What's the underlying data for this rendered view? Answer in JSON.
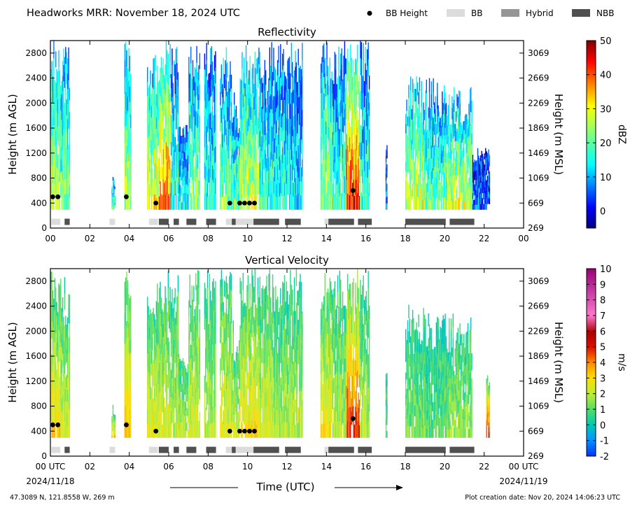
{
  "header": {
    "title": "Headworks MRR:  November 18, 2024 UTC",
    "legend": [
      {
        "label": "BB Height",
        "kind": "dot",
        "color": "#000000"
      },
      {
        "label": "BB",
        "kind": "box",
        "color": "#dcdcdc"
      },
      {
        "label": "Hybrid",
        "kind": "box",
        "color": "#969696"
      },
      {
        "label": "NBB",
        "kind": "box",
        "color": "#505050"
      }
    ]
  },
  "footer": {
    "location": "47.3089 N, 121.8558 W, 269 m",
    "creation": "Plot creation date: Nov 20, 2024 14:06:23 UTC"
  },
  "colors": {
    "bb": "#dcdcdc",
    "hybrid": "#969696",
    "nbb": "#505050",
    "dot": "#000000"
  },
  "chart_data": [
    {
      "type": "heatmap",
      "title": "Reflectivity",
      "ylabel_left": "Height (m AGL)",
      "ylabel_right": "Height (m MSL)",
      "x_ticks": [
        "00",
        "02",
        "04",
        "06",
        "08",
        "10",
        "12",
        "14",
        "16",
        "18",
        "20",
        "22",
        "00"
      ],
      "x_range_hours": [
        0,
        24
      ],
      "y_range_m_agl": [
        0,
        3000
      ],
      "y_ticks_left": [
        "0",
        "400",
        "800",
        "1200",
        "1600",
        "2000",
        "2400",
        "2800"
      ],
      "y_ticks_right": [
        "269",
        "669",
        "1069",
        "1469",
        "1869",
        "2269",
        "2669",
        "3069"
      ],
      "colorbar": {
        "label": "dBZ",
        "range": [
          -5,
          50
        ],
        "ticks": [
          "0",
          "10",
          "20",
          "30",
          "40",
          "50"
        ],
        "colormap": "jet"
      },
      "echo_periods": [
        {
          "start": 0.0,
          "end": 0.5,
          "top": 3000,
          "intensity": 24
        },
        {
          "start": 0.5,
          "end": 1.0,
          "top": 2900,
          "intensity": 20
        },
        {
          "start": 3.1,
          "end": 3.3,
          "top": 850,
          "intensity": 18
        },
        {
          "start": 3.75,
          "end": 4.1,
          "top": 3000,
          "intensity": 22
        },
        {
          "start": 4.9,
          "end": 5.5,
          "top": 2800,
          "intensity": 28
        },
        {
          "start": 5.5,
          "end": 6.1,
          "top": 3000,
          "intensity": 34
        },
        {
          "start": 6.1,
          "end": 6.5,
          "top": 3000,
          "intensity": 15
        },
        {
          "start": 6.5,
          "end": 7.0,
          "top": 1650,
          "intensity": 12
        },
        {
          "start": 7.0,
          "end": 7.6,
          "top": 3000,
          "intensity": 20
        },
        {
          "start": 7.8,
          "end": 8.4,
          "top": 3000,
          "intensity": 14
        },
        {
          "start": 8.6,
          "end": 9.2,
          "top": 3000,
          "intensity": 18
        },
        {
          "start": 9.2,
          "end": 9.6,
          "top": 2200,
          "intensity": 17
        },
        {
          "start": 9.6,
          "end": 10.6,
          "top": 3000,
          "intensity": 24
        },
        {
          "start": 10.6,
          "end": 11.3,
          "top": 3000,
          "intensity": 15
        },
        {
          "start": 11.3,
          "end": 12.1,
          "top": 3000,
          "intensity": 14
        },
        {
          "start": 12.1,
          "end": 12.8,
          "top": 3000,
          "intensity": 12
        },
        {
          "start": 13.7,
          "end": 14.3,
          "top": 3000,
          "intensity": 22
        },
        {
          "start": 14.3,
          "end": 15.0,
          "top": 3000,
          "intensity": 16
        },
        {
          "start": 15.0,
          "end": 15.7,
          "top": 3000,
          "intensity": 38
        },
        {
          "start": 15.7,
          "end": 16.2,
          "top": 3000,
          "intensity": 15
        },
        {
          "start": 17.0,
          "end": 17.1,
          "top": 1350,
          "intensity": 5
        },
        {
          "start": 18.0,
          "end": 19.0,
          "top": 2450,
          "intensity": 25
        },
        {
          "start": 19.0,
          "end": 20.1,
          "top": 2400,
          "intensity": 18
        },
        {
          "start": 20.1,
          "end": 21.4,
          "top": 2300,
          "intensity": 24
        },
        {
          "start": 21.4,
          "end": 22.3,
          "top": 1300,
          "intensity": 5
        }
      ],
      "bb_height_points": [
        {
          "t": 0.12,
          "h": 500
        },
        {
          "t": 0.38,
          "h": 500
        },
        {
          "t": 3.85,
          "h": 500
        },
        {
          "t": 5.35,
          "h": 400
        },
        {
          "t": 9.1,
          "h": 400
        },
        {
          "t": 9.6,
          "h": 400
        },
        {
          "t": 9.85,
          "h": 400
        },
        {
          "t": 10.1,
          "h": 400
        },
        {
          "t": 10.35,
          "h": 400
        },
        {
          "t": 15.35,
          "h": 600
        }
      ],
      "bb_type_segments": [
        {
          "start": 0.05,
          "end": 0.5,
          "type": "bb"
        },
        {
          "start": 0.72,
          "end": 0.98,
          "type": "nbb"
        },
        {
          "start": 3.0,
          "end": 3.28,
          "type": "bb"
        },
        {
          "start": 5.0,
          "end": 5.45,
          "type": "bb"
        },
        {
          "start": 5.5,
          "end": 6.0,
          "type": "nbb"
        },
        {
          "start": 6.25,
          "end": 6.52,
          "type": "nbb"
        },
        {
          "start": 6.9,
          "end": 7.4,
          "type": "nbb"
        },
        {
          "start": 7.9,
          "end": 8.4,
          "type": "nbb"
        },
        {
          "start": 8.9,
          "end": 9.2,
          "type": "bb"
        },
        {
          "start": 9.2,
          "end": 9.4,
          "type": "nbb"
        },
        {
          "start": 9.4,
          "end": 10.3,
          "type": "bb"
        },
        {
          "start": 10.3,
          "end": 11.6,
          "type": "nbb"
        },
        {
          "start": 11.9,
          "end": 12.7,
          "type": "nbb"
        },
        {
          "start": 13.9,
          "end": 14.1,
          "type": "bb"
        },
        {
          "start": 14.1,
          "end": 15.4,
          "type": "nbb"
        },
        {
          "start": 15.6,
          "end": 16.3,
          "type": "nbb"
        },
        {
          "start": 18.0,
          "end": 20.05,
          "type": "nbb"
        },
        {
          "start": 20.25,
          "end": 21.5,
          "type": "nbb"
        }
      ]
    },
    {
      "type": "heatmap",
      "title": "Vertical Velocity",
      "ylabel_left": "Height (m AGL)",
      "ylabel_right": "Height (m MSL)",
      "xlabel": "Time (UTC)",
      "x_ticks": [
        "00 UTC",
        "02",
        "04",
        "06",
        "08",
        "10",
        "12",
        "14",
        "16",
        "18",
        "20",
        "22",
        "00 UTC"
      ],
      "x_dates": [
        "2024/11/18",
        "2024/11/19"
      ],
      "x_range_hours": [
        0,
        24
      ],
      "y_range_m_agl": [
        0,
        3000
      ],
      "y_ticks_left": [
        "0",
        "400",
        "800",
        "1200",
        "1600",
        "2000",
        "2400",
        "2800"
      ],
      "y_ticks_right": [
        "269",
        "669",
        "1069",
        "1469",
        "1869",
        "2269",
        "2669",
        "3069"
      ],
      "colorbar": {
        "label": "m/s",
        "range": [
          -2,
          10
        ],
        "ticks": [
          "-2",
          "-1",
          "0",
          "1",
          "2",
          "3",
          "4",
          "5",
          "6",
          "7",
          "8",
          "9",
          "10"
        ],
        "colormap": "velocity"
      },
      "echo_periods": [
        {
          "start": 0.0,
          "end": 0.5,
          "top": 3000,
          "intensity": 2
        },
        {
          "start": 0.5,
          "end": 1.0,
          "top": 2900,
          "intensity": 1.5
        },
        {
          "start": 3.1,
          "end": 3.3,
          "top": 850,
          "intensity": 2
        },
        {
          "start": 3.75,
          "end": 4.1,
          "top": 3000,
          "intensity": 2
        },
        {
          "start": 4.9,
          "end": 5.5,
          "top": 2800,
          "intensity": 1.5
        },
        {
          "start": 5.5,
          "end": 6.1,
          "top": 3000,
          "intensity": 1.5
        },
        {
          "start": 6.1,
          "end": 6.5,
          "top": 3000,
          "intensity": 1.2
        },
        {
          "start": 6.5,
          "end": 7.0,
          "top": 1650,
          "intensity": 1.2
        },
        {
          "start": 7.0,
          "end": 7.6,
          "top": 3000,
          "intensity": 1.5
        },
        {
          "start": 7.8,
          "end": 8.4,
          "top": 3000,
          "intensity": 1.2
        },
        {
          "start": 8.6,
          "end": 9.2,
          "top": 3000,
          "intensity": 1.5
        },
        {
          "start": 9.2,
          "end": 9.6,
          "top": 2200,
          "intensity": 1.5
        },
        {
          "start": 9.6,
          "end": 10.6,
          "top": 3000,
          "intensity": 1.8
        },
        {
          "start": 10.6,
          "end": 11.3,
          "top": 3000,
          "intensity": 1.5
        },
        {
          "start": 11.3,
          "end": 12.1,
          "top": 3000,
          "intensity": 1.2
        },
        {
          "start": 12.1,
          "end": 12.8,
          "top": 3000,
          "intensity": 1.2
        },
        {
          "start": 13.7,
          "end": 14.3,
          "top": 3000,
          "intensity": 1.8
        },
        {
          "start": 14.3,
          "end": 15.0,
          "top": 3000,
          "intensity": 1.2
        },
        {
          "start": 15.0,
          "end": 15.7,
          "top": 3000,
          "intensity": 3
        },
        {
          "start": 15.7,
          "end": 16.2,
          "top": 3000,
          "intensity": 1.2
        },
        {
          "start": 17.0,
          "end": 17.1,
          "top": 1350,
          "intensity": 0.5
        },
        {
          "start": 18.0,
          "end": 19.0,
          "top": 2450,
          "intensity": 0.8
        },
        {
          "start": 19.0,
          "end": 20.1,
          "top": 2400,
          "intensity": 0.6
        },
        {
          "start": 20.1,
          "end": 21.4,
          "top": 2300,
          "intensity": 1.0
        },
        {
          "start": 22.1,
          "end": 22.3,
          "top": 1300,
          "intensity": 3
        }
      ],
      "bb_height_points": [
        {
          "t": 0.12,
          "h": 500
        },
        {
          "t": 0.38,
          "h": 500
        },
        {
          "t": 3.85,
          "h": 500
        },
        {
          "t": 5.35,
          "h": 400
        },
        {
          "t": 9.1,
          "h": 400
        },
        {
          "t": 9.6,
          "h": 400
        },
        {
          "t": 9.85,
          "h": 400
        },
        {
          "t": 10.1,
          "h": 400
        },
        {
          "t": 10.35,
          "h": 400
        },
        {
          "t": 15.35,
          "h": 600
        }
      ],
      "bb_type_segments": [
        {
          "start": 0.05,
          "end": 0.5,
          "type": "bb"
        },
        {
          "start": 0.72,
          "end": 0.98,
          "type": "nbb"
        },
        {
          "start": 3.0,
          "end": 3.28,
          "type": "bb"
        },
        {
          "start": 5.0,
          "end": 5.45,
          "type": "bb"
        },
        {
          "start": 5.5,
          "end": 6.0,
          "type": "nbb"
        },
        {
          "start": 6.25,
          "end": 6.52,
          "type": "nbb"
        },
        {
          "start": 6.9,
          "end": 7.4,
          "type": "nbb"
        },
        {
          "start": 7.9,
          "end": 8.4,
          "type": "nbb"
        },
        {
          "start": 8.9,
          "end": 9.2,
          "type": "bb"
        },
        {
          "start": 9.2,
          "end": 9.4,
          "type": "nbb"
        },
        {
          "start": 9.4,
          "end": 10.3,
          "type": "bb"
        },
        {
          "start": 10.3,
          "end": 11.6,
          "type": "nbb"
        },
        {
          "start": 11.9,
          "end": 12.7,
          "type": "nbb"
        },
        {
          "start": 13.9,
          "end": 14.1,
          "type": "bb"
        },
        {
          "start": 14.1,
          "end": 15.4,
          "type": "nbb"
        },
        {
          "start": 15.6,
          "end": 16.3,
          "type": "nbb"
        },
        {
          "start": 18.0,
          "end": 20.05,
          "type": "nbb"
        },
        {
          "start": 20.25,
          "end": 21.5,
          "type": "nbb"
        }
      ]
    }
  ]
}
